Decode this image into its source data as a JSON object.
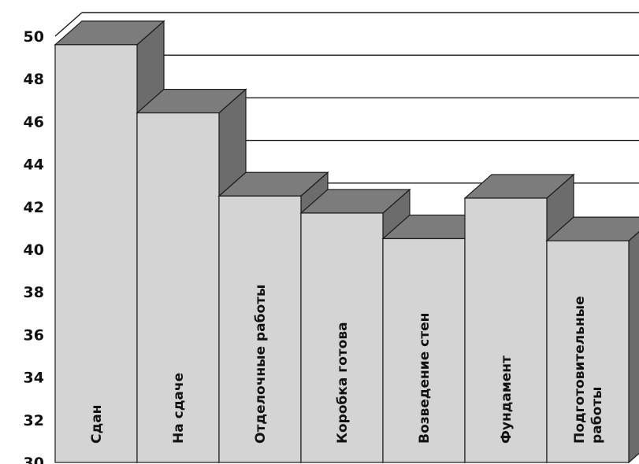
{
  "chart_data": {
    "type": "bar",
    "style": "3d",
    "categories": [
      [
        "Сдан"
      ],
      [
        "На сдаче"
      ],
      [
        "Отделочные работы"
      ],
      [
        "Коробка готова"
      ],
      [
        "Возведение стен"
      ],
      [
        "Фундамент"
      ],
      [
        "Подготовительные",
        "работы"
      ]
    ],
    "values": [
      49.6,
      46.4,
      42.5,
      41.7,
      40.5,
      42.4,
      40.4
    ],
    "ylim": [
      30,
      50
    ],
    "yticks": [
      30,
      32,
      34,
      36,
      38,
      40,
      42,
      44,
      46,
      48,
      50
    ],
    "grid": true,
    "colors": {
      "front": "#d4d4d4",
      "top": "#7c7c7c",
      "side": "#6c6c6c",
      "outline": "#1a1a1a",
      "grid": "#1a1a1a"
    }
  }
}
